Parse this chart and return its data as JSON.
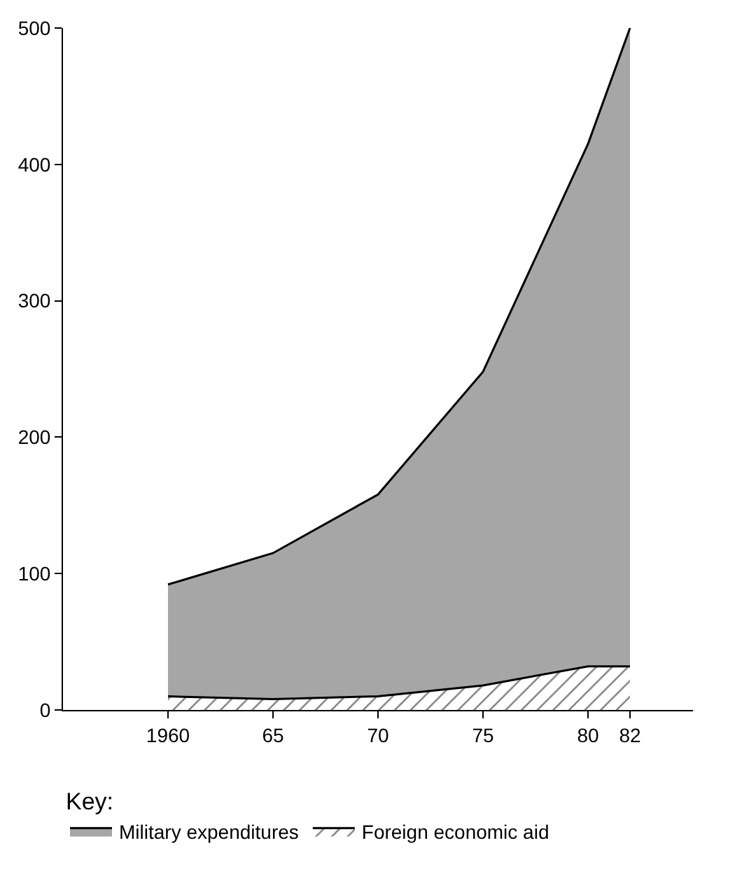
{
  "chart_data": {
    "type": "area",
    "stacked": true,
    "x": [
      1960,
      1965,
      1970,
      1975,
      1980,
      1982
    ],
    "series": [
      {
        "name": "Foreign economic aid",
        "color": "#ffffff",
        "values": [
          10,
          8,
          10,
          18,
          32,
          32
        ]
      },
      {
        "name": "Military expenditures",
        "color": "#a6a6a6",
        "values": [
          82,
          107,
          148,
          230,
          383,
          468
        ]
      }
    ],
    "xlim": [
      1955,
      1985
    ],
    "xticks": [
      {
        "value": 1960,
        "label": "1960"
      },
      {
        "value": 1965,
        "label": "65"
      },
      {
        "value": 1970,
        "label": "70"
      },
      {
        "value": 1975,
        "label": "75"
      },
      {
        "value": 1980,
        "label": "80"
      },
      {
        "value": 1982,
        "label": "82"
      }
    ],
    "ylim": [
      0,
      500
    ],
    "yticks": [
      0,
      100,
      200,
      300,
      400,
      500
    ],
    "legend": "bottom",
    "legend_title": "Key:"
  }
}
